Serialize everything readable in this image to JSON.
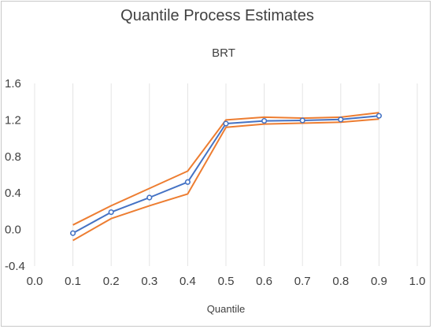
{
  "chart_data": {
    "type": "line",
    "title": "Quantile Process Estimates",
    "subtitle": "BRT",
    "xlabel": "Quantile",
    "ylabel": "",
    "xlim": [
      0.0,
      1.0
    ],
    "ylim": [
      -0.4,
      1.6
    ],
    "x_ticks": [
      "0.0",
      "0.1",
      "0.2",
      "0.3",
      "0.4",
      "0.5",
      "0.6",
      "0.7",
      "0.8",
      "0.9",
      "1.0"
    ],
    "y_ticks": [
      "-0.4",
      "0.0",
      "0.4",
      "0.8",
      "1.2",
      "1.6"
    ],
    "grid": "vertical",
    "x": [
      0.1,
      0.2,
      0.3,
      0.4,
      0.5,
      0.6,
      0.7,
      0.8,
      0.9
    ],
    "series": [
      {
        "role": "estimate",
        "color": "#4472C4",
        "markers": true,
        "values": [
          -0.04,
          0.19,
          0.35,
          0.52,
          1.16,
          1.19,
          1.195,
          1.205,
          1.245
        ]
      },
      {
        "role": "upper",
        "color": "#ED7D31",
        "markers": false,
        "values": [
          0.05,
          0.26,
          0.45,
          0.64,
          1.2,
          1.23,
          1.22,
          1.23,
          1.28
        ]
      },
      {
        "role": "lower",
        "color": "#ED7D31",
        "markers": false,
        "values": [
          -0.12,
          0.12,
          0.26,
          0.39,
          1.12,
          1.155,
          1.165,
          1.175,
          1.21
        ]
      }
    ]
  }
}
